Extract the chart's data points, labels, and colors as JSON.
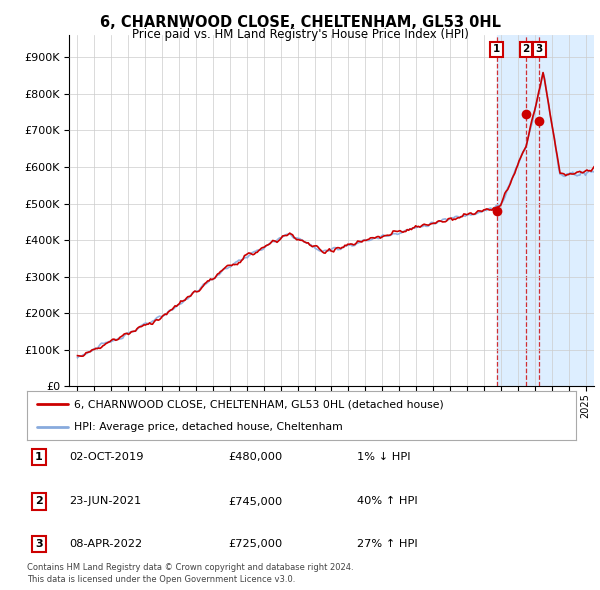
{
  "title": "6, CHARNWOOD CLOSE, CHELTENHAM, GL53 0HL",
  "subtitle": "Price paid vs. HM Land Registry's House Price Index (HPI)",
  "ytick_values": [
    0,
    100000,
    200000,
    300000,
    400000,
    500000,
    600000,
    700000,
    800000,
    900000
  ],
  "ylim": [
    0,
    960000
  ],
  "xlim_start": 1994.5,
  "xlim_end": 2025.5,
  "transactions": [
    {
      "date": 2019.75,
      "price": 480000,
      "label": "1"
    },
    {
      "date": 2021.47,
      "price": 745000,
      "label": "2"
    },
    {
      "date": 2022.27,
      "price": 725000,
      "label": "3"
    }
  ],
  "legend_entries": [
    {
      "label": "6, CHARNWOOD CLOSE, CHELTENHAM, GL53 0HL (detached house)",
      "color": "#cc0000",
      "lw": 2
    },
    {
      "label": "HPI: Average price, detached house, Cheltenham",
      "color": "#88aadd",
      "lw": 2
    }
  ],
  "table_rows": [
    {
      "num": "1",
      "date": "02-OCT-2019",
      "price": "£480,000",
      "pct": "1% ↓ HPI"
    },
    {
      "num": "2",
      "date": "23-JUN-2021",
      "price": "£745,000",
      "pct": "40% ↑ HPI"
    },
    {
      "num": "3",
      "date": "08-APR-2022",
      "price": "£725,000",
      "pct": "27% ↑ HPI"
    }
  ],
  "footer": "Contains HM Land Registry data © Crown copyright and database right 2024.\nThis data is licensed under the Open Government Licence v3.0.",
  "background_color": "#ffffff",
  "plot_bg_color": "#ffffff",
  "grid_color": "#cccccc",
  "transaction_marker_color": "#cc0000",
  "transaction_box_color": "#cc0000",
  "vline_color": "#cc0000",
  "shade_color": "#ddeeff"
}
